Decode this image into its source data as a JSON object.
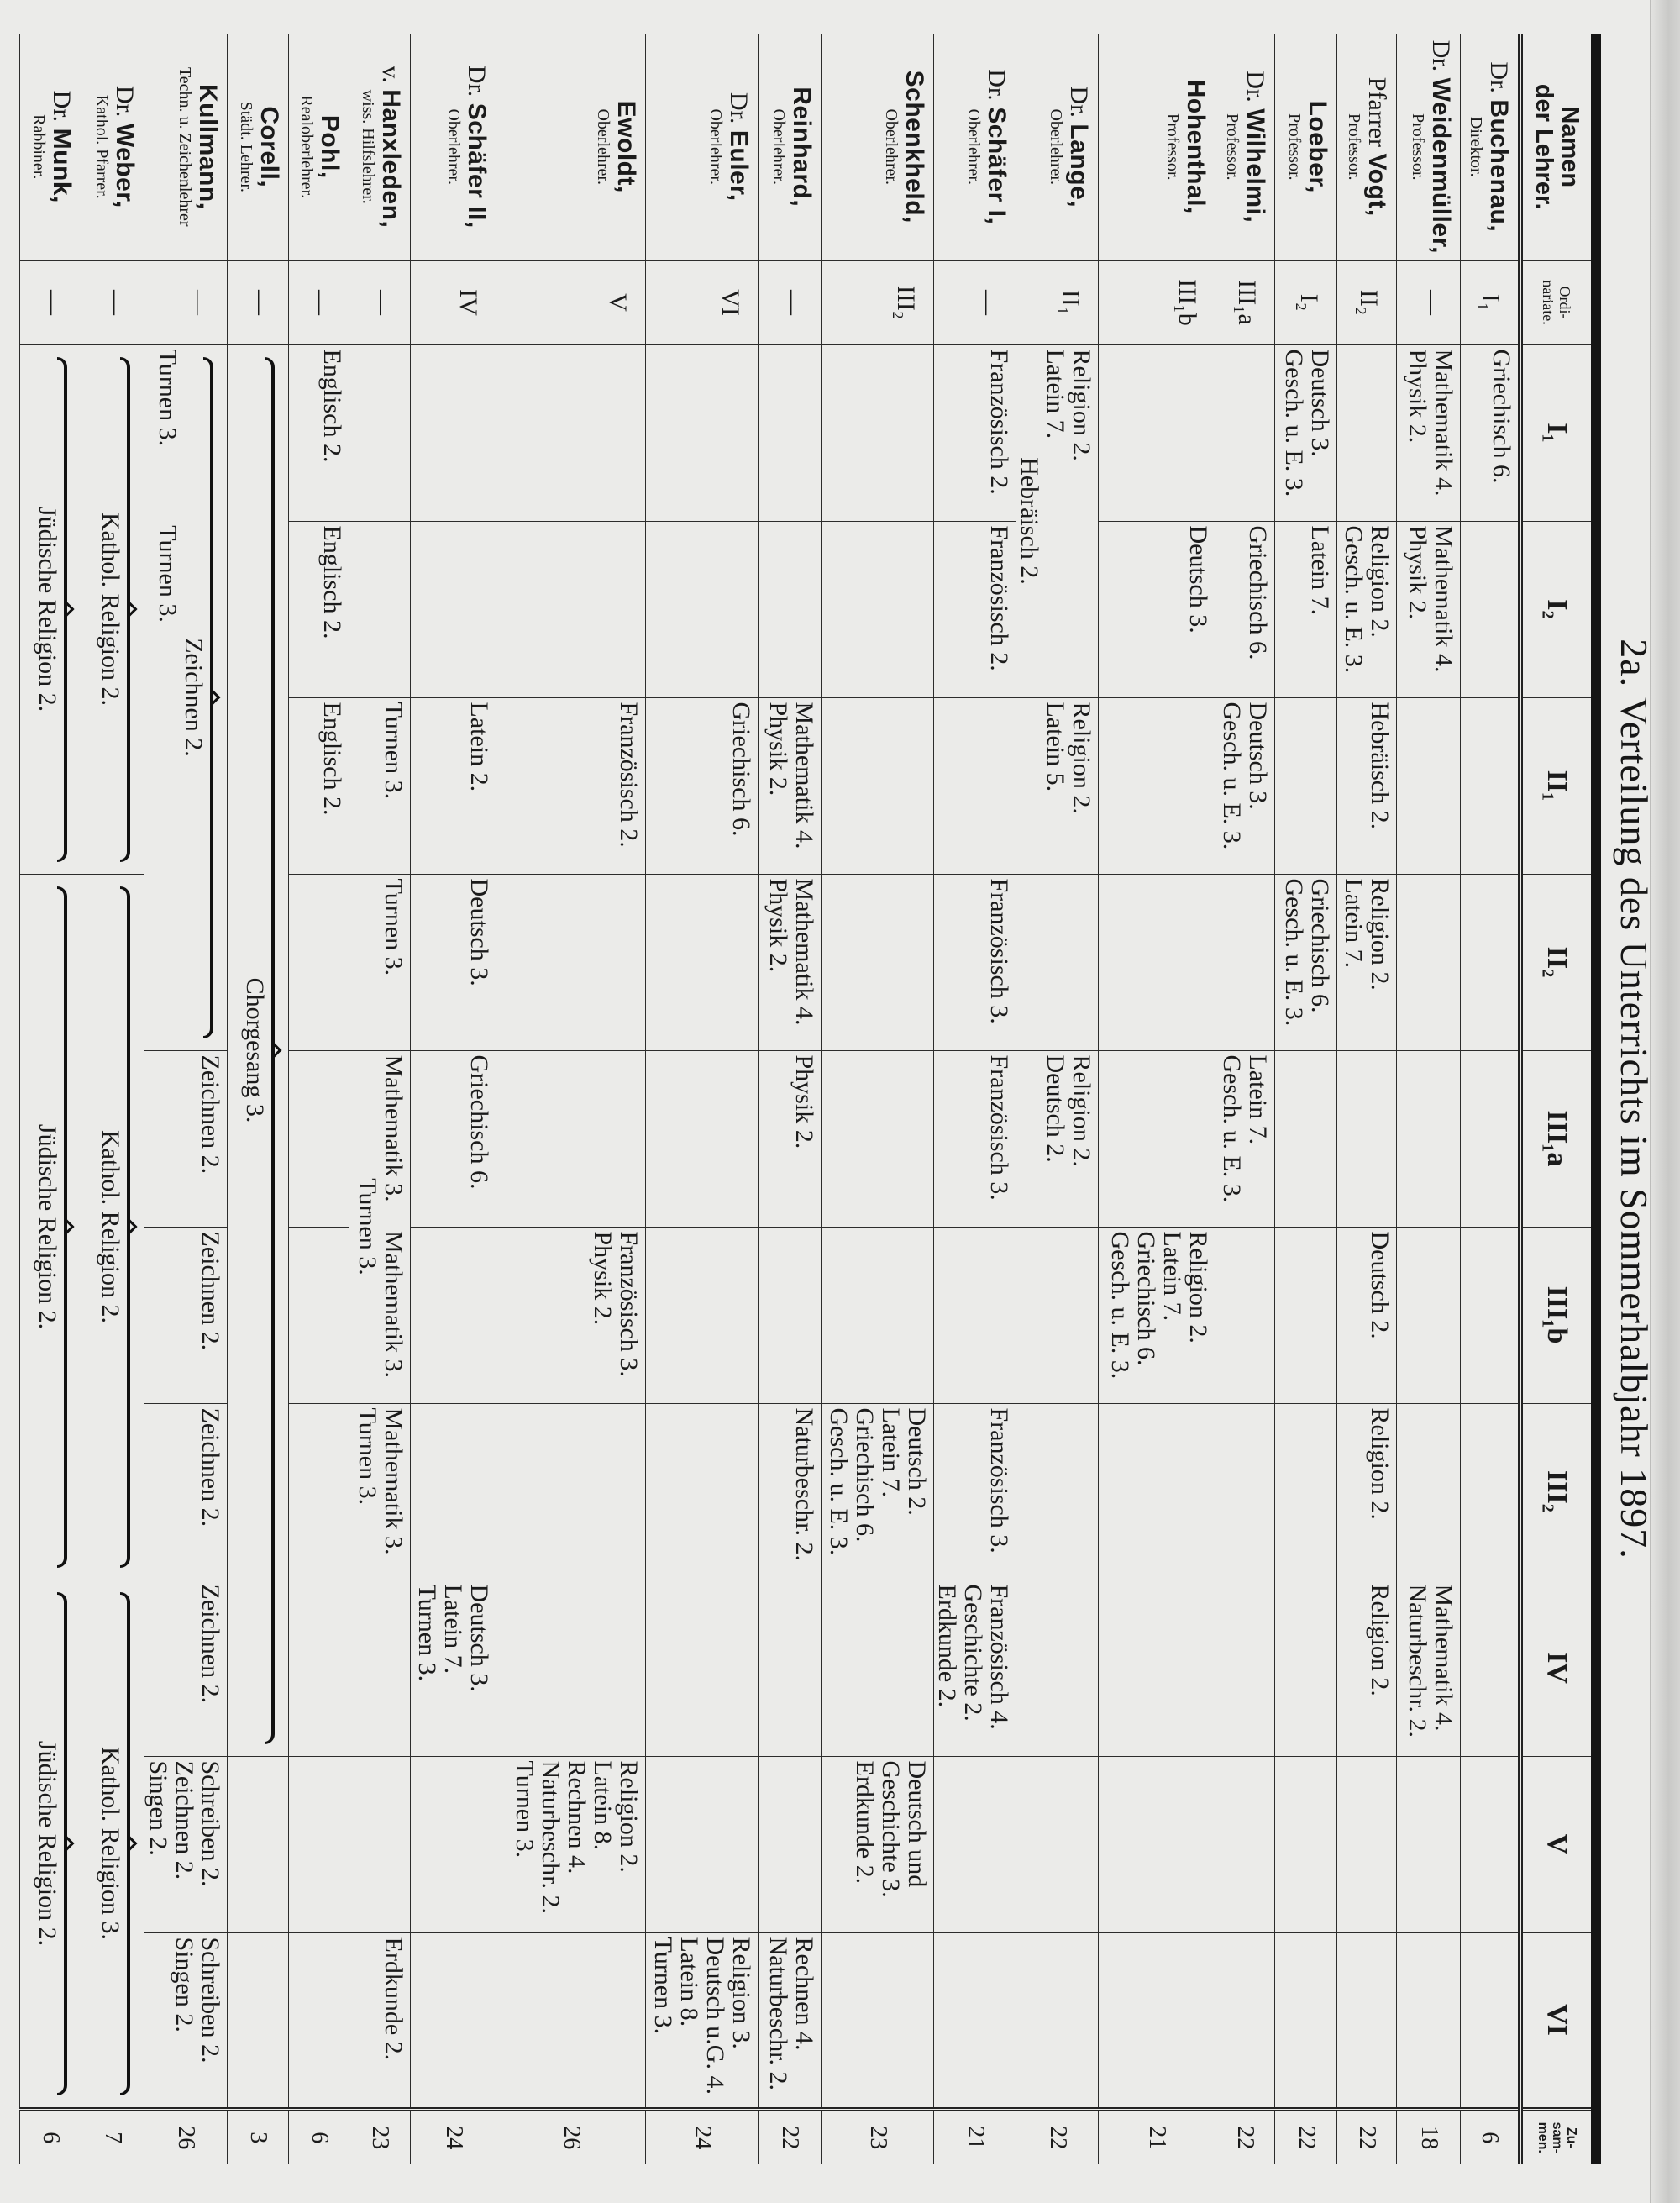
{
  "title": "2a. Verteilung des Unterrichts im Sommerhalbjahr 1897.",
  "header": {
    "name": [
      "Namen",
      "der Lehrer."
    ],
    "ordinariate": [
      "Ordi-",
      "nariate."
    ],
    "classes": [
      "I₁",
      "I₂",
      "II₁",
      "II₂",
      "III₁a",
      "III₁b",
      "III₂",
      "IV",
      "V",
      "VI"
    ],
    "total": [
      "Zu-",
      "sam-",
      "men."
    ]
  },
  "teachers": [
    {
      "prefix": "Dr.",
      "surname": "Buchenau,",
      "role": "Direktor.",
      "ordinariat": "I₁",
      "total": "6",
      "cells": [
        {
          "col": "I₁",
          "lines": [
            "Griechisch 6."
          ]
        }
      ]
    },
    {
      "prefix": "Dr.",
      "surname": "Weidenmüller,",
      "role": "Professor.",
      "ordinariat": "—",
      "total": "18",
      "cells": [
        {
          "col": "I₁",
          "lines": [
            "Mathematik 4.",
            "Physik 2."
          ]
        },
        {
          "col": "I₂",
          "lines": [
            "Mathematik 4.",
            "Physik 2."
          ]
        },
        {
          "col": "IV",
          "lines": [
            "Mathematik 4.",
            "Naturbeschr. 2."
          ]
        }
      ]
    },
    {
      "prefix": "Pfarrer",
      "surname": "Vogt,",
      "role": "Professor.",
      "ordinariat": "II₂",
      "total": "22",
      "cells": [
        {
          "col": "I₂",
          "lines": [
            "Religion 2.",
            "Gesch. u. E. 3."
          ]
        },
        {
          "col": "II₁",
          "lines": [
            "Hebräisch 2."
          ]
        },
        {
          "col": "II₂",
          "lines": [
            "Religion 2.",
            "Latein 7."
          ]
        },
        {
          "col": "III₁b",
          "lines": [
            "Deutsch 2."
          ]
        },
        {
          "col": "III₂",
          "lines": [
            "Religion 2."
          ]
        },
        {
          "col": "IV",
          "lines": [
            "Religion 2."
          ]
        }
      ]
    },
    {
      "prefix": "",
      "surname": "Loeber,",
      "role": "Professor.",
      "ordinariat": "I₂",
      "total": "22",
      "cells": [
        {
          "col": "I₁",
          "lines": [
            "Deutsch 3.",
            "Gesch. u. E. 3."
          ]
        },
        {
          "col": "I₂",
          "lines": [
            "Latein 7."
          ]
        },
        {
          "col": "II₂",
          "lines": [
            "Griechisch 6.",
            "Gesch. u. E. 3."
          ]
        }
      ]
    },
    {
      "prefix": "Dr.",
      "surname": "Wilhelmi,",
      "role": "Professor.",
      "ordinariat": "III₁a",
      "total": "22",
      "cells": [
        {
          "col": "I₂",
          "lines": [
            "Griechisch 6."
          ]
        },
        {
          "col": "II₁",
          "lines": [
            "Deutsch 3.",
            "Gesch. u. E. 3."
          ]
        },
        {
          "col": "III₁a",
          "lines": [
            "Latein 7.",
            "Gesch. u. E. 3."
          ]
        }
      ]
    },
    {
      "prefix": "",
      "surname": "Hohenthal,",
      "role": "Professor.",
      "ordinariat": "III₁b",
      "total": "21",
      "cells": [
        {
          "col": "I₂",
          "lines": [
            "Deutsch 3."
          ]
        },
        {
          "col": "III₁b",
          "lines": [
            "Religion 2.",
            "Latein 7.",
            "Griechisch 6.",
            "Gesch. u. E. 3."
          ]
        }
      ]
    },
    {
      "prefix": "Dr.",
      "surname": "Lange,",
      "role": "Oberlehrer.",
      "ordinariat": "II₁",
      "total": "22",
      "cells": [
        {
          "from": "I₁",
          "to": "I₂",
          "brace": false,
          "above": [
            [
              "Religion 2.",
              "Latein 7."
            ],
            []
          ],
          "text": "Hebräisch 2."
        },
        {
          "col": "II₁",
          "lines": [
            "Religion 2.",
            "Latein 5."
          ]
        },
        {
          "col": "III₁a",
          "lines": [
            "Religion 2.",
            "Deutsch 2."
          ]
        }
      ]
    },
    {
      "prefix": "Dr.",
      "surname": "Schäfer I,",
      "role": "Oberlehrer.",
      "ordinariat": "—",
      "total": "21",
      "cells": [
        {
          "col": "I₁",
          "lines": [
            "Französisch 2."
          ]
        },
        {
          "col": "I₂",
          "lines": [
            "Französisch 2."
          ]
        },
        {
          "col": "II₂",
          "lines": [
            "Französisch 3."
          ]
        },
        {
          "col": "III₁a",
          "lines": [
            "Französisch 3."
          ]
        },
        {
          "col": "III₂",
          "lines": [
            "Französisch 3."
          ]
        },
        {
          "col": "IV",
          "lines": [
            "Französisch 4.",
            "Geschichte 2.",
            "Erdkunde 2."
          ]
        }
      ]
    },
    {
      "prefix": "",
      "surname": "Schenkheld,",
      "role": "Oberlehrer.",
      "ordinariat": "III₂",
      "total": "23",
      "cells": [
        {
          "col": "III₂",
          "lines": [
            "Deutsch 2.",
            "Latein 7.",
            "Griechisch 6.",
            "Gesch. u. E. 3."
          ]
        },
        {
          "col": "V",
          "lines": [
            "Deutsch und",
            "Geschichte 3.",
            "Erdkunde 2."
          ]
        }
      ]
    },
    {
      "prefix": "",
      "surname": "Reinhard,",
      "role": "Oberlehrer.",
      "ordinariat": "—",
      "total": "22",
      "cells": [
        {
          "col": "II₁",
          "lines": [
            "Mathematik 4.",
            "Physik 2."
          ]
        },
        {
          "col": "II₂",
          "lines": [
            "Mathematik 4.",
            "Physik 2."
          ]
        },
        {
          "col": "III₁a",
          "lines": [
            "Physik 2."
          ]
        },
        {
          "col": "III₂",
          "lines": [
            "Naturbeschr. 2."
          ]
        },
        {
          "col": "VI",
          "lines": [
            "Rechnen 4.",
            "Naturbeschr. 2."
          ]
        }
      ]
    },
    {
      "prefix": "Dr.",
      "surname": "Euler,",
      "role": "Oberlehrer.",
      "ordinariat": "VI",
      "total": "24",
      "cells": [
        {
          "col": "II₁",
          "lines": [
            "Griechisch 6."
          ]
        },
        {
          "col": "VI",
          "lines": [
            "Religion 3.",
            "Deutsch u.G. 4.",
            "Latein 8.",
            "Turnen 3."
          ]
        }
      ]
    },
    {
      "prefix": "",
      "surname": "Ewoldt,",
      "role": "Oberlehrer.",
      "ordinariat": "V",
      "total": "26",
      "cells": [
        {
          "col": "II₁",
          "lines": [
            "Französisch 2."
          ]
        },
        {
          "col": "III₁b",
          "lines": [
            "Französisch 3.",
            "Physik 2."
          ]
        },
        {
          "col": "V",
          "lines": [
            "Religion 2.",
            "Latein 8.",
            "Rechnen 4.",
            "Naturbeschr. 2.",
            "Turnen 3."
          ]
        }
      ]
    },
    {
      "prefix": "Dr.",
      "surname": "Schäfer II,",
      "role": "Oberlehrer.",
      "ordinariat": "IV",
      "total": "24",
      "cells": [
        {
          "col": "II₁",
          "lines": [
            "Latein 2."
          ]
        },
        {
          "col": "II₂",
          "lines": [
            "Deutsch 3."
          ]
        },
        {
          "col": "III₁a",
          "lines": [
            "Griechisch 6."
          ]
        },
        {
          "col": "IV",
          "lines": [
            "Deutsch 3.",
            "Latein 7.",
            "Turnen 3."
          ]
        }
      ]
    },
    {
      "prefix": "v.",
      "surname": "Hanxleden,",
      "role": "wiss. Hilfslehrer.",
      "ordinariat": "—",
      "total": "23",
      "cells": [
        {
          "col": "II₁",
          "lines": [
            "Turnen 3."
          ]
        },
        {
          "col": "II₂",
          "lines": [
            "Turnen 3."
          ]
        },
        {
          "from": "III₁a",
          "to": "III₁b",
          "brace": false,
          "above": [
            [
              "Mathematik 3."
            ],
            [
              "Mathematik 3."
            ]
          ],
          "text": "Turnen 3."
        },
        {
          "col": "III₂",
          "lines": [
            "Mathematik 3.",
            "Turnen 3."
          ]
        },
        {
          "col": "VI",
          "lines": [
            "Erdkunde 2."
          ]
        }
      ]
    },
    {
      "prefix": "",
      "surname": "Pohl,",
      "role": "Realoberlehrer.",
      "ordinariat": "—",
      "total": "6",
      "cells": [
        {
          "col": "I₁",
          "lines": [
            "Englisch 2."
          ]
        },
        {
          "col": "I₂",
          "lines": [
            "Englisch 2."
          ]
        },
        {
          "col": "II₁",
          "lines": [
            "Englisch 2."
          ]
        }
      ]
    },
    {
      "prefix": "",
      "surname": "Corell,",
      "role": "Städt. Lehrer.",
      "ordinariat": "—",
      "total": "3",
      "cells": [
        {
          "from": "I₁",
          "to": "IV",
          "brace": true,
          "text": "Chorgesang 3."
        }
      ]
    },
    {
      "prefix": "",
      "surname": "Kullmann,",
      "role": "Techn. u. Zeichenlehrer",
      "ordinariat": "—",
      "total": "26",
      "cells": [
        {
          "from": "I₁",
          "to": "II₂",
          "brace": true,
          "text": "Zeichnen 2.",
          "below": [
            [
              "Turnen 3."
            ],
            [
              "Turnen 3."
            ],
            [],
            []
          ]
        },
        {
          "col": "III₁a",
          "lines": [
            "Zeichnen 2."
          ]
        },
        {
          "col": "III₁b",
          "lines": [
            "Zeichnen 2."
          ]
        },
        {
          "col": "III₂",
          "lines": [
            "Zeichnen 2."
          ]
        },
        {
          "col": "IV",
          "lines": [
            "Zeichnen 2."
          ]
        },
        {
          "col": "V",
          "lines": [
            "Schreiben 2.",
            "Zeichnen 2.",
            "Singen 2."
          ]
        },
        {
          "col": "VI",
          "lines": [
            "Schreiben 2.",
            "Singen 2."
          ]
        }
      ]
    },
    {
      "prefix": "Dr.",
      "surname": "Weber,",
      "role": "Kathol. Pfarrer.",
      "ordinariat": "—",
      "total": "7",
      "cells": [
        {
          "from": "I₁",
          "to": "II₁",
          "brace": true,
          "text": "Kathol. Religion 2."
        },
        {
          "from": "II₂",
          "to": "III₂",
          "brace": true,
          "text": "Kathol. Religion 2."
        },
        {
          "from": "IV",
          "to": "VI",
          "brace": true,
          "text": "Kathol. Religion 3."
        }
      ]
    },
    {
      "prefix": "Dr.",
      "surname": "Munk,",
      "role": "Rabbiner.",
      "ordinariat": "—",
      "total": "6",
      "cells": [
        {
          "from": "I₁",
          "to": "II₁",
          "brace": true,
          "text": "Jüdische Religion 2."
        },
        {
          "from": "II₂",
          "to": "III₂",
          "brace": true,
          "text": "Jüdische Religion 2."
        },
        {
          "from": "IV",
          "to": "VI",
          "brace": true,
          "text": "Jüdische Religion 2."
        }
      ]
    }
  ]
}
